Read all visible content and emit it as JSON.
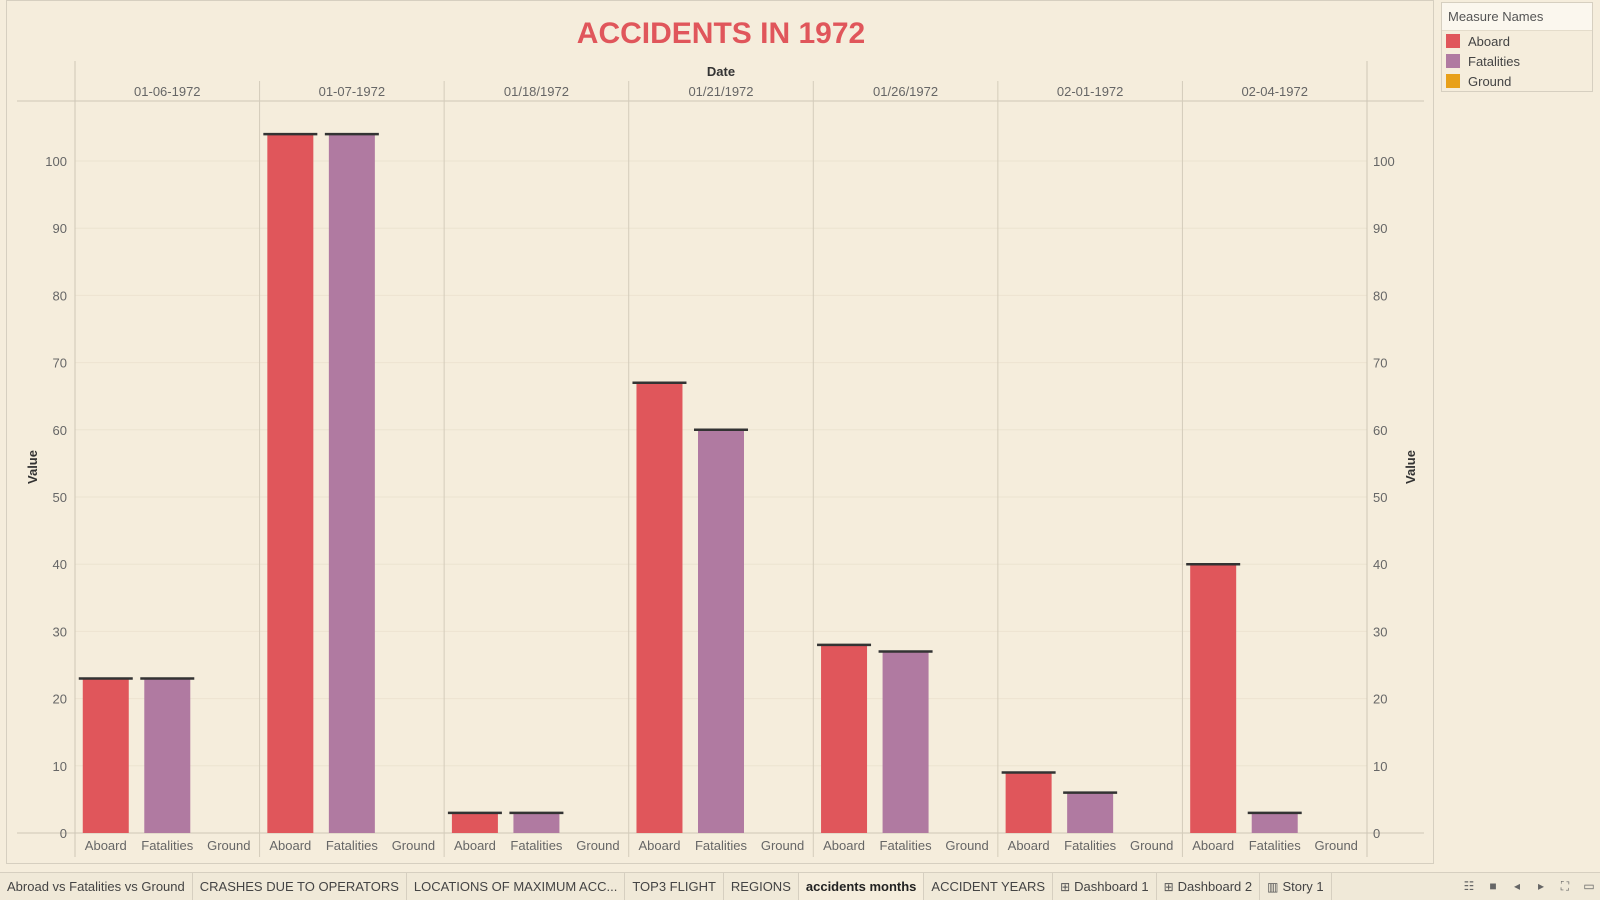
{
  "chart_data": {
    "type": "bar",
    "title": "ACCIDENTS IN 1972",
    "column_header": "Date",
    "ylabel": "Value",
    "ylim": [
      0,
      110
    ],
    "yticks": [
      0,
      10,
      20,
      30,
      40,
      50,
      60,
      70,
      80,
      90,
      100
    ],
    "grid": true,
    "dual_axis": true,
    "categories": [
      "01-06-1972",
      "01-07-1972",
      "01/18/1972",
      "01/21/1972",
      "01/26/1972",
      "02-01-1972",
      "02-04-1972"
    ],
    "measures": [
      "Aboard",
      "Fatalities",
      "Ground"
    ],
    "series": [
      {
        "name": "Aboard",
        "color": "#e0565b",
        "values": [
          23,
          104,
          3,
          67,
          28,
          9,
          40
        ]
      },
      {
        "name": "Fatalities",
        "color": "#b07aa1",
        "values": [
          23,
          104,
          3,
          60,
          27,
          6,
          3
        ]
      },
      {
        "name": "Ground",
        "color": "#e8a019",
        "values": [
          0,
          0,
          0,
          0,
          0,
          0,
          0
        ]
      }
    ],
    "legend_placement": "top-right"
  },
  "legend": {
    "title": "Measure Names",
    "items": [
      {
        "label": "Aboard",
        "color": "#e0565b"
      },
      {
        "label": "Fatalities",
        "color": "#b07aa1"
      },
      {
        "label": "Ground",
        "color": "#e8a019"
      }
    ]
  },
  "tabs": [
    {
      "label": "Abroad vs Fatalities vs Ground",
      "icon": "",
      "active": false
    },
    {
      "label": "CRASHES DUE TO OPERATORS",
      "icon": "",
      "active": false
    },
    {
      "label": "LOCATIONS OF MAXIMUM ACC...",
      "icon": "",
      "active": false
    },
    {
      "label": "TOP3 FLIGHT",
      "icon": "",
      "active": false
    },
    {
      "label": "REGIONS",
      "icon": "",
      "active": false
    },
    {
      "label": "accidents months",
      "icon": "",
      "active": true
    },
    {
      "label": "ACCIDENT YEARS",
      "icon": "",
      "active": false
    },
    {
      "label": "Dashboard 1",
      "icon": "dashboard-icon",
      "active": false
    },
    {
      "label": "Dashboard 2",
      "icon": "dashboard-icon",
      "active": false
    },
    {
      "label": "Story 1",
      "icon": "story-icon",
      "active": false
    }
  ],
  "controls": [
    "grid-view-icon",
    "filmstrip-icon",
    "prev-icon",
    "next-icon",
    "fullscreen-icon",
    "presentation-icon"
  ]
}
